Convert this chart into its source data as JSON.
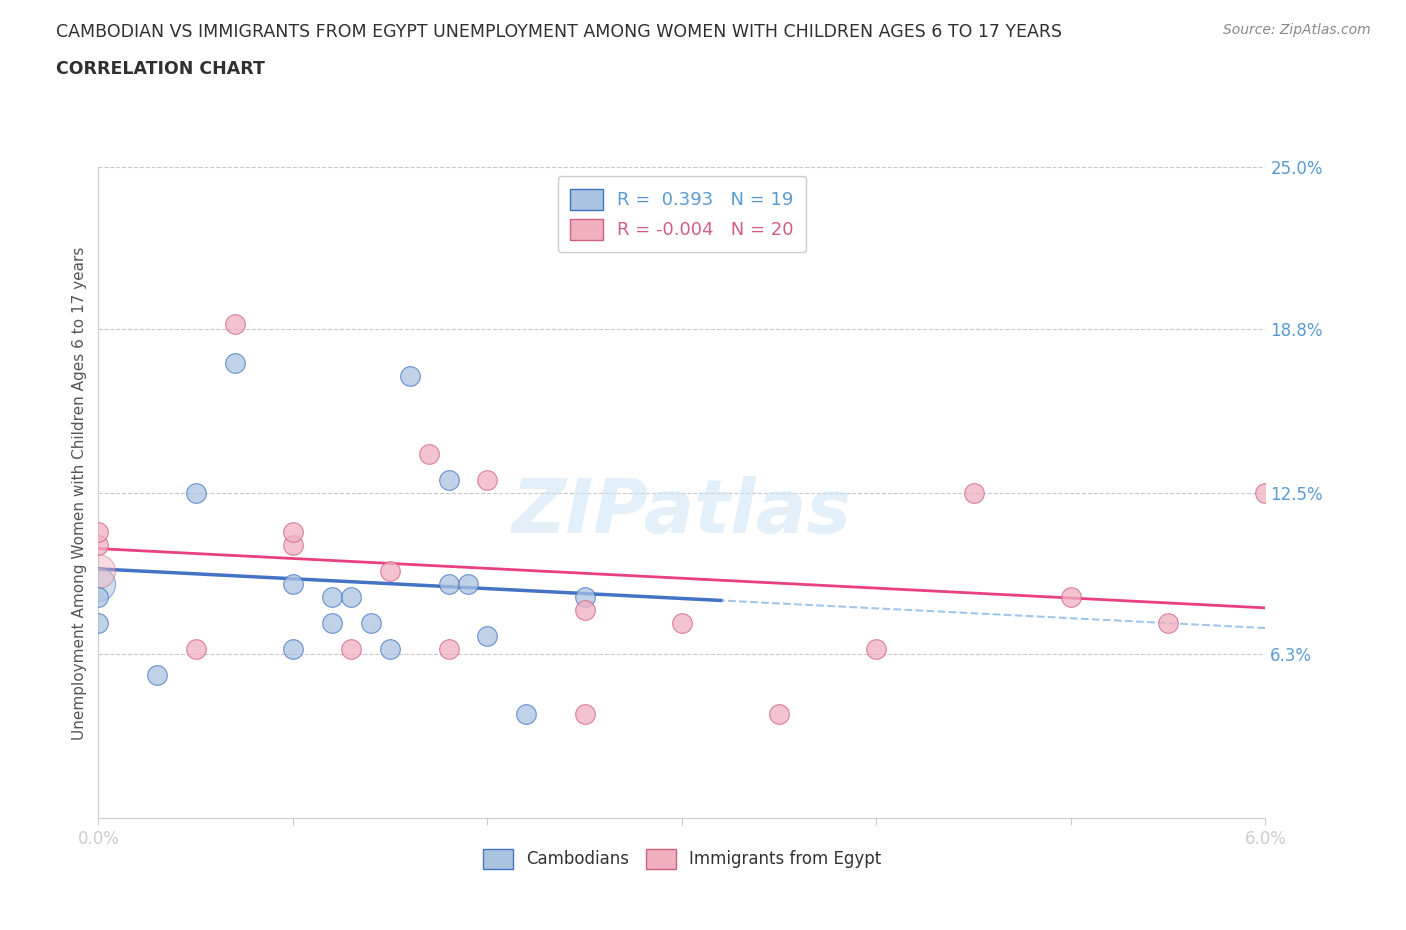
{
  "title_line1": "CAMBODIAN VS IMMIGRANTS FROM EGYPT UNEMPLOYMENT AMONG WOMEN WITH CHILDREN AGES 6 TO 17 YEARS",
  "title_line2": "CORRELATION CHART",
  "source_text": "Source: ZipAtlas.com",
  "ylabel": "Unemployment Among Women with Children Ages 6 to 17 years",
  "xlim": [
    0.0,
    0.06
  ],
  "ylim": [
    0.0,
    0.25
  ],
  "xticks": [
    0.0,
    0.01,
    0.02,
    0.03,
    0.04,
    0.05,
    0.06
  ],
  "xtick_labels": [
    "0.0%",
    "",
    "",
    "",
    "",
    "",
    "6.0%"
  ],
  "yticks": [
    0.063,
    0.125,
    0.188,
    0.25
  ],
  "ytick_labels": [
    "6.3%",
    "12.5%",
    "18.8%",
    "25.0%"
  ],
  "legend_r1": "R =  0.393   N = 19",
  "legend_r2": "R = -0.004   N = 20",
  "color_cambodian": "#aac4e0",
  "color_egypt": "#f0b0c0",
  "color_line_cambodian": "#4472c4",
  "color_line_egypt": "#e84080",
  "color_dashed": "#88b8e8",
  "color_grid": "#c8c8c8",
  "color_title": "#303030",
  "color_axis_num": "#5b9bd5",
  "color_source": "#888888",
  "watermark": "ZIPatlas",
  "background_color": "#ffffff",
  "cam_x": [
    0.0,
    0.0,
    0.003,
    0.005,
    0.007,
    0.01,
    0.01,
    0.012,
    0.012,
    0.013,
    0.014,
    0.015,
    0.016,
    0.018,
    0.018,
    0.019,
    0.02,
    0.022,
    0.025
  ],
  "cam_y": [
    0.085,
    0.075,
    0.055,
    0.125,
    0.175,
    0.09,
    0.065,
    0.085,
    0.075,
    0.085,
    0.075,
    0.065,
    0.17,
    0.13,
    0.09,
    0.09,
    0.07,
    0.04,
    0.085
  ],
  "egy_x": [
    0.0,
    0.0,
    0.005,
    0.007,
    0.01,
    0.01,
    0.013,
    0.015,
    0.017,
    0.018,
    0.02,
    0.025,
    0.025,
    0.03,
    0.035,
    0.04,
    0.045,
    0.05,
    0.055,
    0.06
  ],
  "egy_y": [
    0.105,
    0.11,
    0.065,
    0.19,
    0.105,
    0.11,
    0.065,
    0.095,
    0.14,
    0.065,
    0.13,
    0.08,
    0.04,
    0.075,
    0.04,
    0.065,
    0.125,
    0.085,
    0.075,
    0.125
  ]
}
